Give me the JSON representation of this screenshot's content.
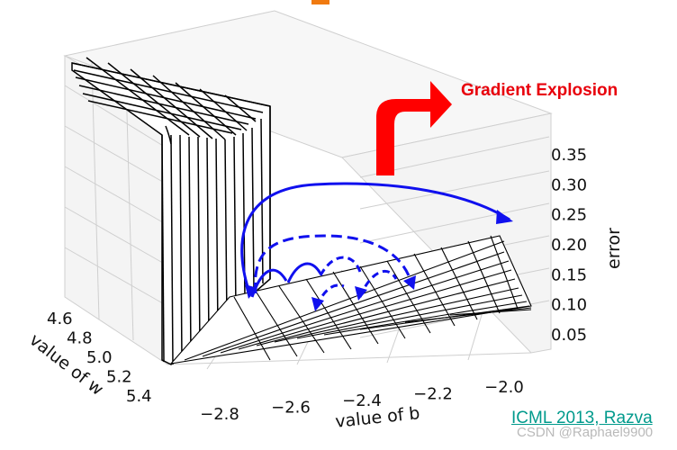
{
  "chart_data": {
    "type": "surface",
    "title": "",
    "xlabel": "value of b",
    "ylabel": "value of w",
    "zlabel": "error",
    "b_ticks": [
      "−2.8",
      "−2.6",
      "−2.4",
      "−2.2",
      "−2.0"
    ],
    "w_ticks": [
      "4.6",
      "4.8",
      "5.0",
      "5.2",
      "5.4"
    ],
    "error_ticks": [
      "0.05",
      "0.10",
      "0.15",
      "0.20",
      "0.25",
      "0.30",
      "0.35"
    ],
    "annotation": "Gradient Explosion",
    "annotation_color": "#e8000b",
    "arrow_fill": "#ff0000",
    "trajectory_color": "#1010ee",
    "grid": true
  },
  "footer": {
    "citation": "ICML 2013, Razva",
    "citation_color": "#009a8c",
    "watermark": "CSDN @Raphael9900"
  }
}
